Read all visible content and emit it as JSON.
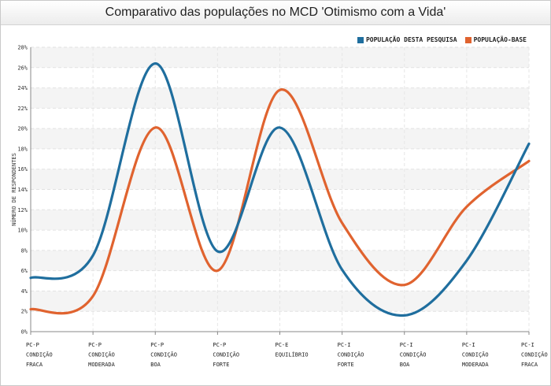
{
  "chart_data": {
    "type": "line",
    "title": "Comparativo das populações no MCD 'Otimismo com a Vida'",
    "ylabel": "NÚMERO DE RESPONDENTES",
    "ylim": [
      0,
      28
    ],
    "ytick_step": 2,
    "ytick_suffix": "%",
    "grid": true,
    "legend_position": "top-right",
    "categories": [
      [
        "PC-P",
        "CONDIÇÃO",
        "FRACA"
      ],
      [
        "PC-P",
        "CONDIÇÃO",
        "MODERADA"
      ],
      [
        "PC-P",
        "CONDIÇÃO",
        "BOA"
      ],
      [
        "PC-P",
        "CONDIÇÃO",
        "FORTE"
      ],
      [
        "PC-E",
        "EQUILÍBRIO"
      ],
      [
        "PC-I",
        "CONDIÇÃO",
        "FORTE"
      ],
      [
        "PC-I",
        "CONDIÇÃO",
        "BOA"
      ],
      [
        "PC-I",
        "CONDIÇÃO",
        "MODERADA"
      ],
      [
        "PC-I",
        "CONDIÇÃO",
        "FRACA"
      ]
    ],
    "series": [
      {
        "name": "POPULAÇÃO DESTA PESQUISA",
        "color": "#1f6e9e",
        "values": [
          5.3,
          7.5,
          26.4,
          7.9,
          20.1,
          6.1,
          1.6,
          7.0,
          18.5
        ]
      },
      {
        "name": "POPULAÇÃO-BASE",
        "color": "#e0632f",
        "values": [
          2.2,
          3.5,
          20.1,
          6.0,
          23.8,
          10.7,
          4.6,
          12.3,
          16.8
        ]
      }
    ]
  }
}
